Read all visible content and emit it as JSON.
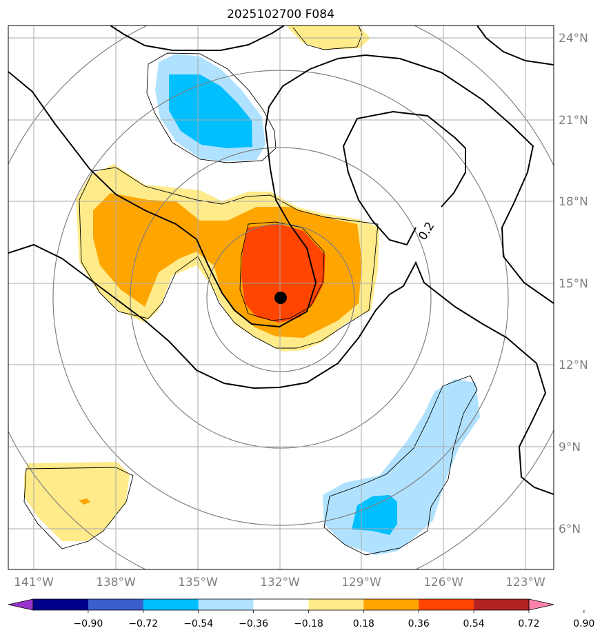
{
  "title": "2025102700 F084",
  "contour_label": "0.2",
  "lon_labels": [
    "141°W",
    "138°W",
    "135°W",
    "132°W",
    "129°W",
    "126°W",
    "123°W"
  ],
  "lat_labels": [
    "24°N",
    "21°N",
    "18°N",
    "15°N",
    "12°N",
    "9°N",
    "6°N"
  ],
  "colorbar": {
    "tick_labels": [
      "−0.90",
      "−0.72",
      "−0.54",
      "−0.36",
      "−0.18",
      "0.18",
      "0.36",
      "0.54",
      "0.72",
      "0.90"
    ],
    "colors": [
      "#9932cc",
      "#00008b",
      "#3a5fcd",
      "#00bfff",
      "#b0e2ff",
      "#ffffff",
      "#ffeb8a",
      "#ffa500",
      "#ff4500",
      "#b22222",
      "#ff82ab"
    ]
  },
  "fill_colors": {
    "light_blue": "#b0e2ff",
    "blue": "#00bfff",
    "yellow": "#ffeb8a",
    "orange": "#ffa500",
    "red": "#ff4500"
  },
  "center_marker": {
    "lon": -132.0,
    "lat": 14.5
  }
}
